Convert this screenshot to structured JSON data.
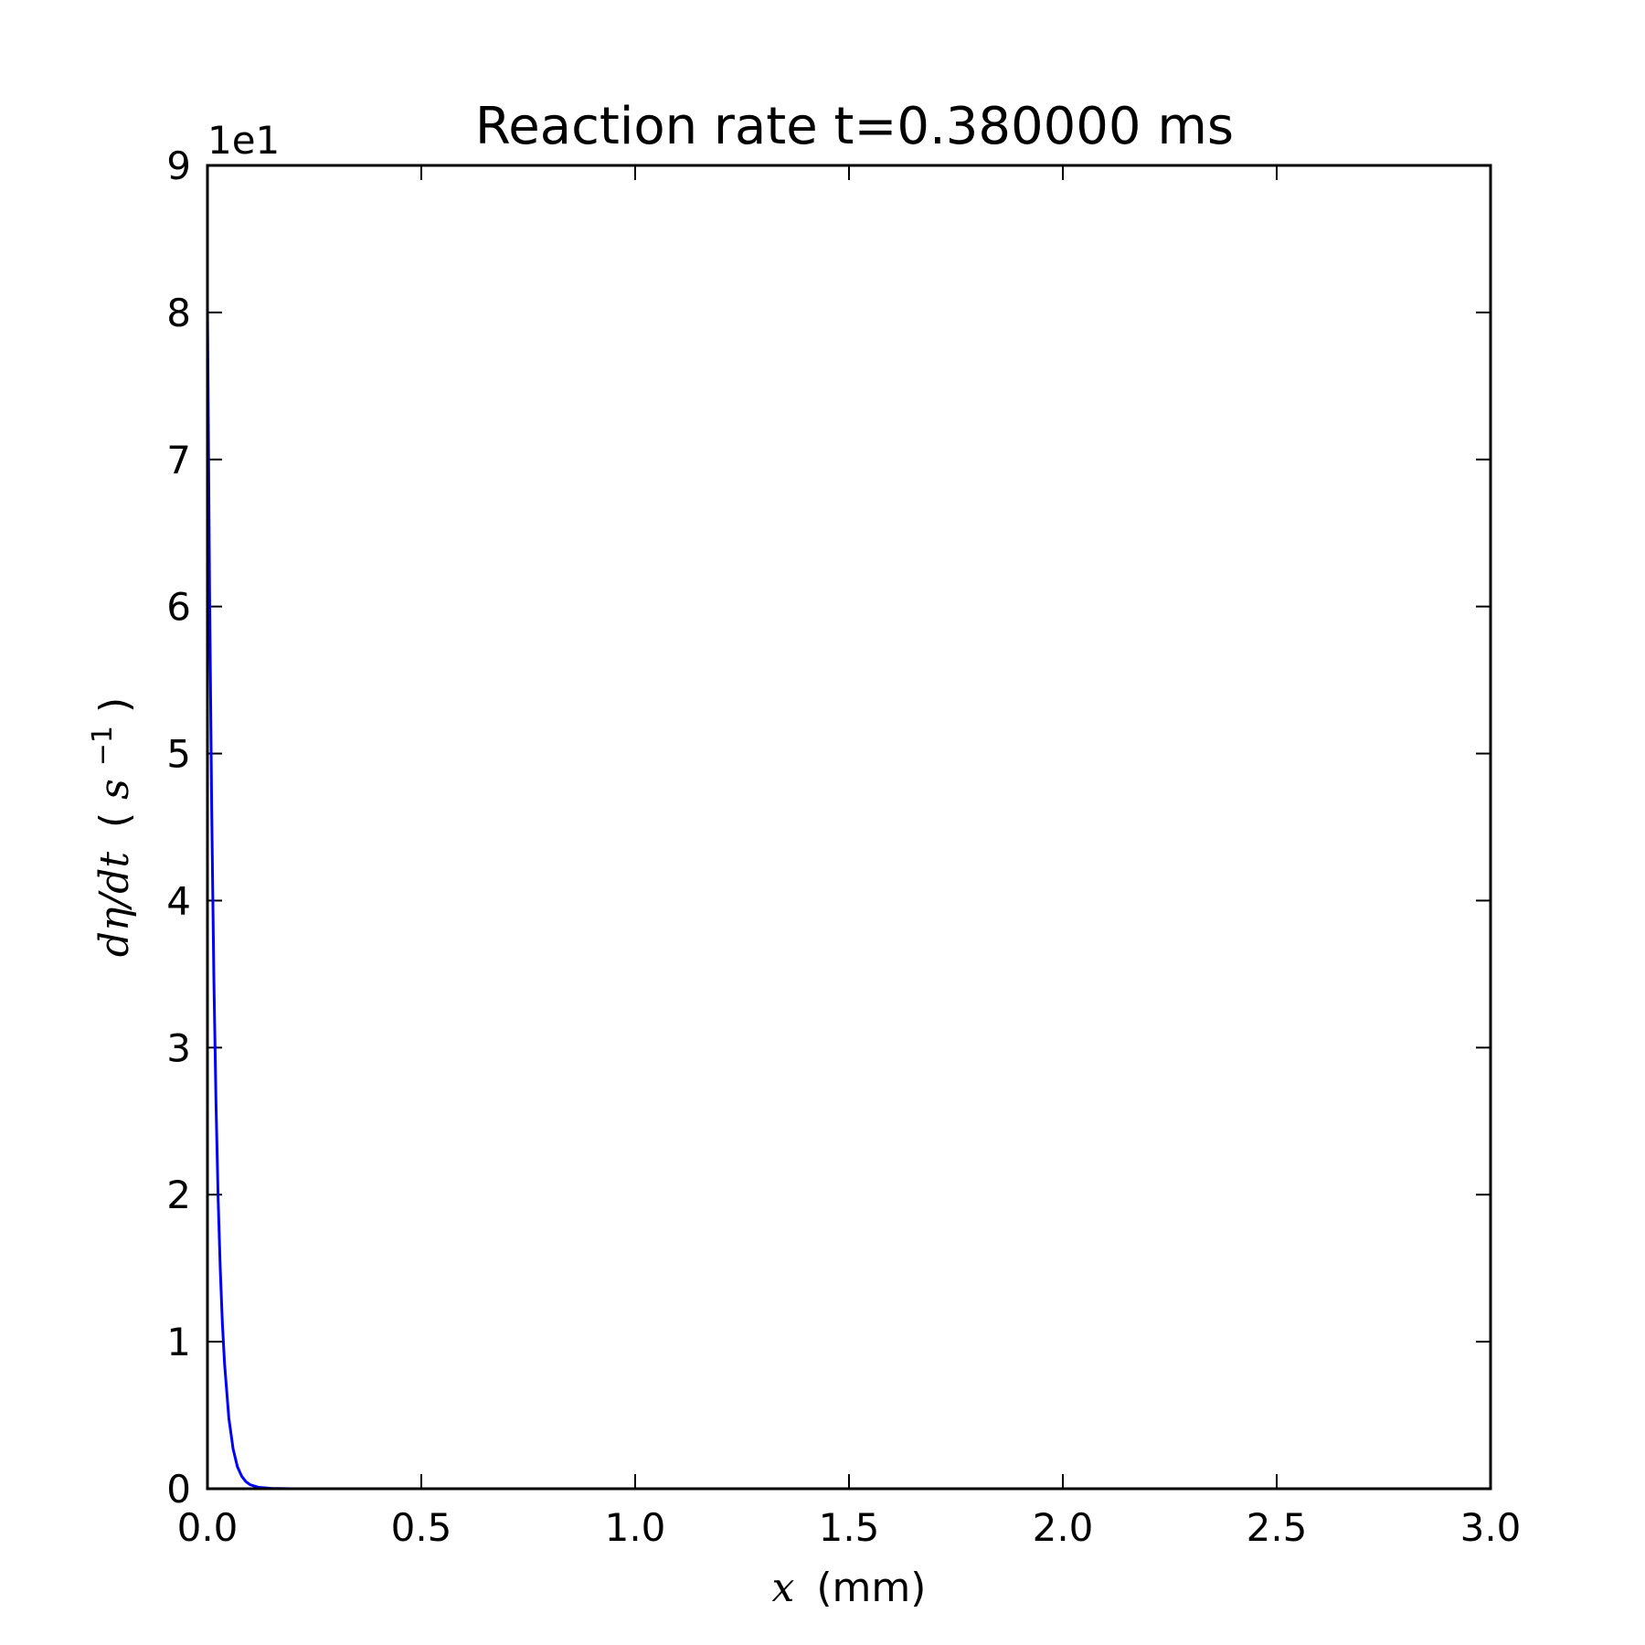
{
  "chart_data": {
    "type": "line",
    "title": "Reaction rate t=0.380000 ms",
    "xlabel": {
      "var": "x",
      "unit": "(mm)"
    },
    "ylabel": {
      "var": "dη/dt",
      "unit_open": "(",
      "unit_base": "s",
      "unit_exp": "−1",
      "unit_close": ")"
    },
    "y_offset_label": "1e1",
    "xlim": [
      0.0,
      3.0
    ],
    "ylim": [
      0,
      9
    ],
    "x_ticks": [
      "0.0",
      "0.5",
      "1.0",
      "1.5",
      "2.0",
      "2.5",
      "3.0"
    ],
    "y_ticks": [
      "0",
      "1",
      "2",
      "3",
      "4",
      "5",
      "6",
      "7",
      "8",
      "9"
    ],
    "grid": false,
    "series": [
      {
        "color": "#0000ff",
        "x": [
          0.0,
          0.005,
          0.01,
          0.015,
          0.02,
          0.025,
          0.03,
          0.035,
          0.04,
          0.05,
          0.06,
          0.07,
          0.08,
          0.09,
          0.1,
          0.12,
          0.15,
          0.2,
          0.3,
          0.5,
          1.0,
          1.5,
          2.0,
          2.5,
          3.0
        ],
        "y": [
          8.05,
          6.1,
          4.6,
          3.47,
          2.62,
          1.97,
          1.49,
          1.12,
          0.85,
          0.48,
          0.27,
          0.15,
          0.085,
          0.048,
          0.027,
          0.009,
          0.002,
          0.0002,
          0.0,
          0.0,
          0.0,
          0.0,
          0.0,
          0.0,
          0.0
        ]
      }
    ]
  }
}
